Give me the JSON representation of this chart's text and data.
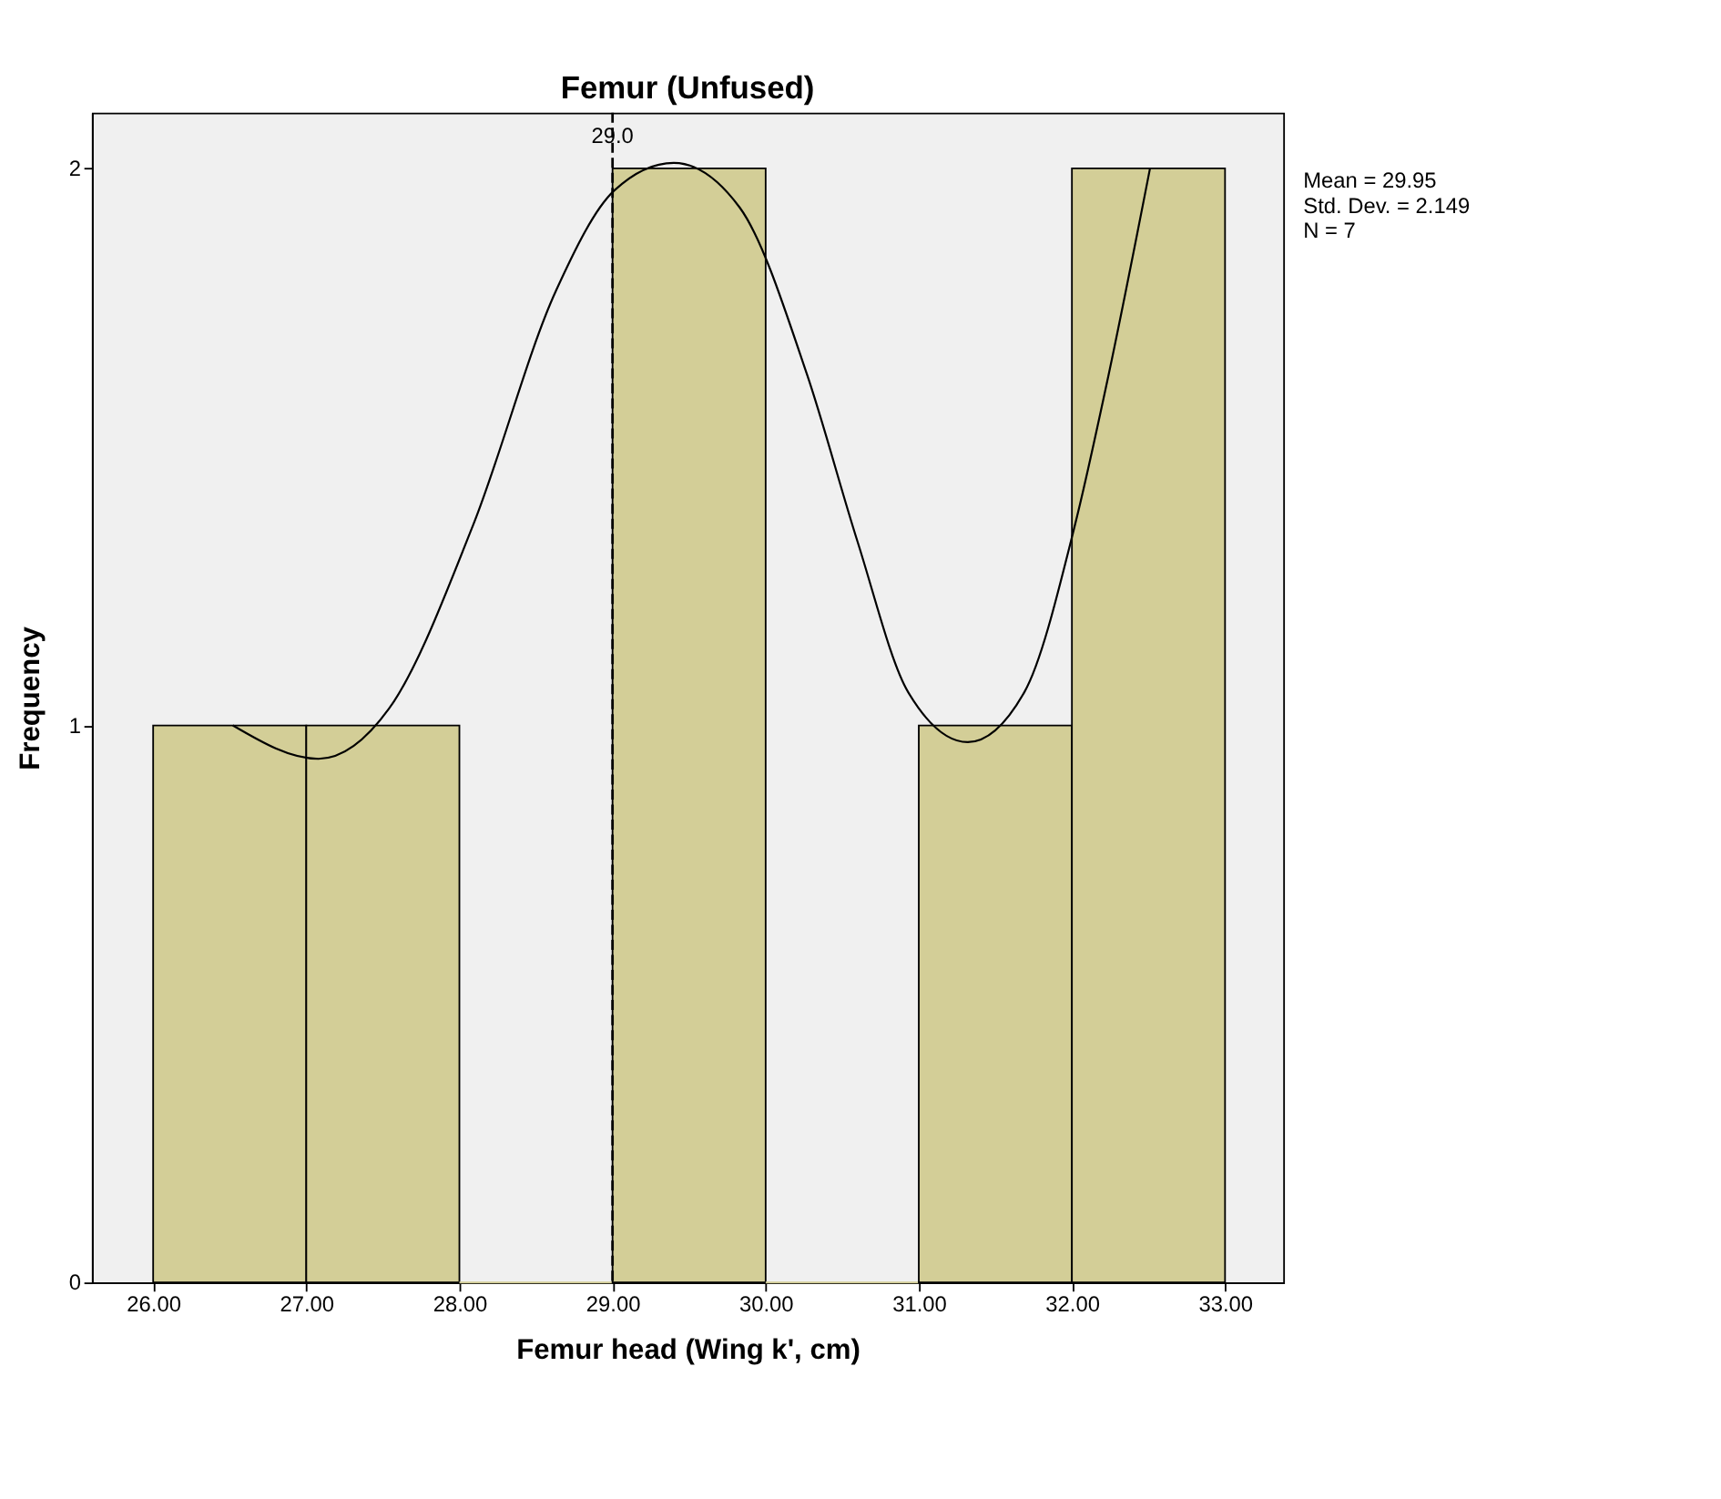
{
  "chart_data": {
    "type": "histogram",
    "title": "Femur (Unfused)",
    "xlabel": "Femur head (Wing k', cm)",
    "ylabel": "Frequency",
    "bins": [
      26,
      27,
      28,
      29,
      30,
      31,
      32,
      33
    ],
    "values": [
      1,
      1,
      0,
      2,
      0,
      1,
      2
    ],
    "color": "#d3ce97",
    "series": [
      {
        "type": "line",
        "color": "#000000",
        "x": [
          26.52,
          27.08,
          27.54,
          28.09,
          28.63,
          29.01,
          29.4,
          29.83,
          30.27,
          30.6,
          30.93,
          31.32,
          31.69,
          32.02,
          32.24,
          32.51
        ],
        "values": [
          1.0,
          0.94,
          1.03,
          1.36,
          1.78,
          1.96,
          2.01,
          1.93,
          1.63,
          1.33,
          1.06,
          0.97,
          1.06,
          1.36,
          1.63,
          2.0
        ]
      }
    ],
    "xlim": [
      25.6,
      33.38
    ],
    "ylim": [
      0,
      2.1
    ],
    "xticks": [
      {
        "value": 26,
        "label": "26.00"
      },
      {
        "value": 27,
        "label": "27.00"
      },
      {
        "value": 28,
        "label": "28.00"
      },
      {
        "value": 29,
        "label": "29.00"
      },
      {
        "value": 30,
        "label": "30.00"
      },
      {
        "value": 31,
        "label": "31.00"
      },
      {
        "value": 32,
        "label": "32.00"
      },
      {
        "value": 33,
        "label": "33.00"
      }
    ],
    "yticks": [
      0,
      1,
      2
    ],
    "ref_lines": [
      {
        "axis": "x",
        "value": 29,
        "label": "29.0",
        "line_style": "dashed",
        "color": "#000000"
      }
    ],
    "annotations": [
      "Mean = 29.95",
      "Std. Dev. = 2.149",
      "N = 7"
    ],
    "grid": false
  }
}
